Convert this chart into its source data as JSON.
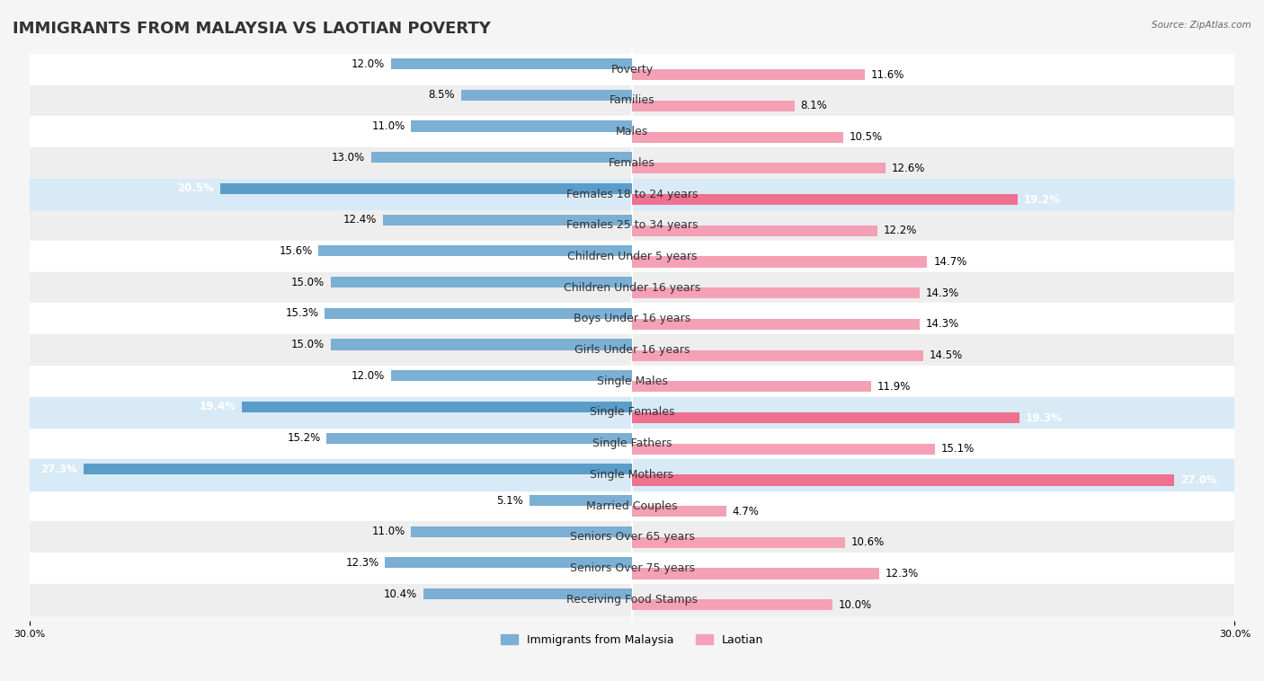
{
  "title": "IMMIGRANTS FROM MALAYSIA VS LAOTIAN POVERTY",
  "source": "Source: ZipAtlas.com",
  "categories": [
    "Poverty",
    "Families",
    "Males",
    "Females",
    "Females 18 to 24 years",
    "Females 25 to 34 years",
    "Children Under 5 years",
    "Children Under 16 years",
    "Boys Under 16 years",
    "Girls Under 16 years",
    "Single Males",
    "Single Females",
    "Single Fathers",
    "Single Mothers",
    "Married Couples",
    "Seniors Over 65 years",
    "Seniors Over 75 years",
    "Receiving Food Stamps"
  ],
  "malaysia_values": [
    12.0,
    8.5,
    11.0,
    13.0,
    20.5,
    12.4,
    15.6,
    15.0,
    15.3,
    15.0,
    12.0,
    19.4,
    15.2,
    27.3,
    5.1,
    11.0,
    12.3,
    10.4
  ],
  "laotian_values": [
    11.6,
    8.1,
    10.5,
    12.6,
    19.2,
    12.2,
    14.7,
    14.3,
    14.3,
    14.5,
    11.9,
    19.3,
    15.1,
    27.0,
    4.7,
    10.6,
    12.3,
    10.0
  ],
  "malaysia_color": "#7bafd4",
  "laotian_color": "#f4a0b5",
  "malaysia_highlight_color": "#5b9dc9",
  "laotian_highlight_color": "#f07090",
  "highlight_rows": [
    4,
    11,
    13
  ],
  "background_color": "#f5f5f5",
  "row_color_light": "#ffffff",
  "row_color_dark": "#eeeeee",
  "xlim": [
    30.0,
    30.0
  ],
  "bar_height": 0.35,
  "label_malaysia": "Immigrants from Malaysia",
  "label_laotian": "Laotian",
  "title_fontsize": 13,
  "label_fontsize": 9,
  "value_fontsize": 8.5,
  "axis_tick_fontsize": 8
}
